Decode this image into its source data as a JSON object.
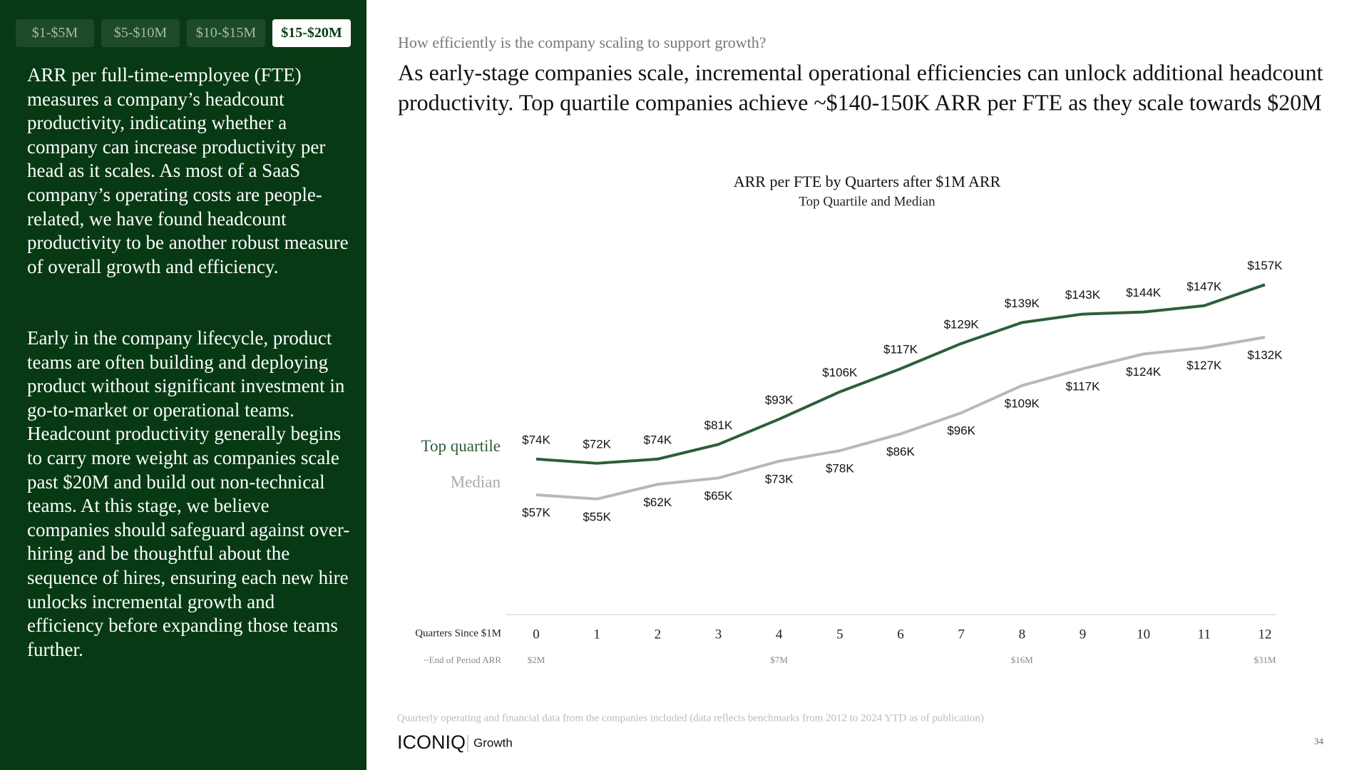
{
  "tabs": [
    "$1-$5M",
    "$5-$10M",
    "$10-$15M",
    "$15-$20M"
  ],
  "active_tab": 3,
  "body": [
    "ARR per full-time-employee (FTE) measures a company’s headcount productivity, indicating whether a company can increase productivity per head as it scales. As most of a SaaS company’s operating costs are people-related, we have found headcount productivity to be another robust measure of overall growth and efficiency.",
    "Early in the company lifecycle, product teams are often building and deploying product without significant investment in go-to-market or operational teams. Headcount productivity generally begins to carry more weight as companies scale past $20M and build out non-technical teams. At this stage, we believe companies should safeguard against over-hiring and be thoughtful about the sequence of hires, ensuring each new hire unlocks incremental growth and efficiency before expanding those teams further."
  ],
  "question": "How efficiently is the company scaling to support growth?",
  "headline": [
    "As early-stage companies scale, incremental operational efficiencies can unlock additional headcount",
    "productivity. Top quartile companies achieve ~$140-150K ARR per FTE as they scale towards $20M"
  ],
  "footnote": "Quarterly operating and financial data from the companies included (data reflects benchmarks from 2012 to 2024 YTD as of publication)",
  "logo": "ICONIQ",
  "logo_sub": "Growth",
  "page_number": "34",
  "chart_data": {
    "type": "line",
    "title": "ARR per FTE by Quarters after $1M ARR",
    "subtitle": "Top Quartile and Median",
    "x_label": "Quarters Since $1M",
    "x2_label": "~End of Period ARR",
    "categories": [
      "0",
      "1",
      "2",
      "3",
      "4",
      "5",
      "6",
      "7",
      "8",
      "9",
      "10",
      "11",
      "12"
    ],
    "arr_labels": [
      "$2M",
      null,
      null,
      null,
      "$7M",
      null,
      null,
      null,
      "$16M",
      null,
      null,
      null,
      "$31M"
    ],
    "ylim": [
      0,
      170
    ],
    "series": [
      {
        "name": "Top quartile",
        "color": "#2d5e3a",
        "values": [
          74,
          72,
          74,
          81,
          93,
          106,
          117,
          129,
          139,
          143,
          144,
          147,
          157
        ],
        "value_labels": [
          "$74K",
          "$72K",
          "$74K",
          "$81K",
          "$93K",
          "$106K",
          "$117K",
          "$129K",
          "$139K",
          "$143K",
          "$144K",
          "$147K",
          "$157K"
        ]
      },
      {
        "name": "Median",
        "color": "#b8b8b8",
        "values": [
          57,
          55,
          62,
          65,
          73,
          78,
          86,
          96,
          109,
          117,
          124,
          127,
          132
        ],
        "value_labels": [
          "$57K",
          "$55K",
          "$62K",
          "$65K",
          "$73K",
          "$78K",
          "$86K",
          "$96K",
          "$109K",
          "$117K",
          "$124K",
          "$127K",
          "$132K"
        ]
      }
    ]
  }
}
